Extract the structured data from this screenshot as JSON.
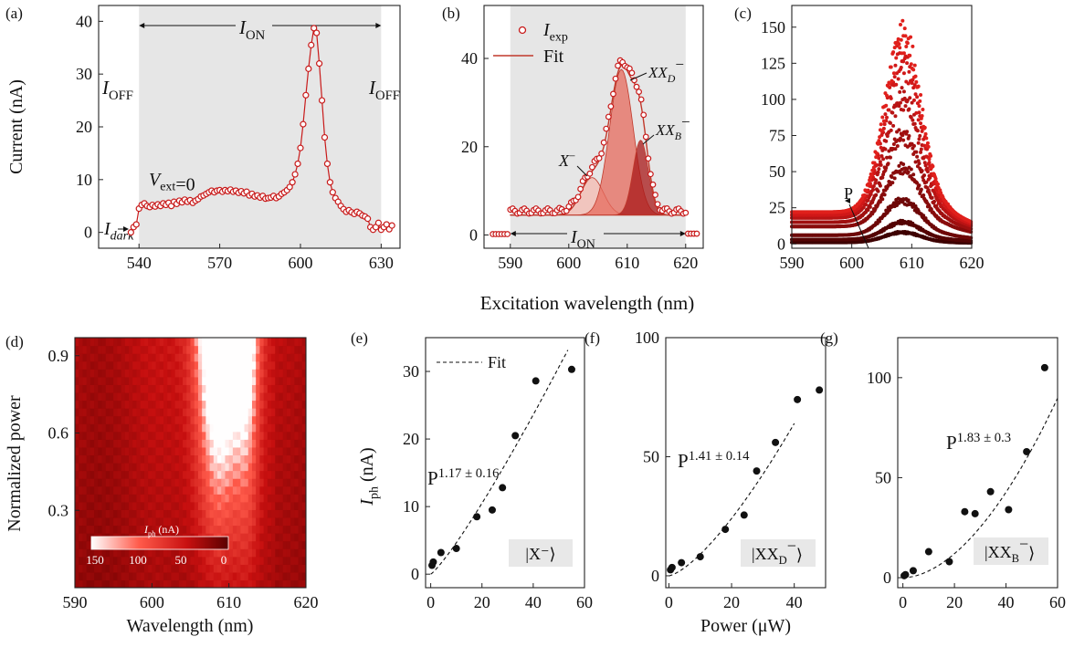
{
  "colors": {
    "red": "#c81a1a",
    "dark_red": "#6e0000",
    "shade": "#e6e6e6",
    "fit": "#c0392b",
    "black": "#111111",
    "label_box": "#e8e8e8"
  },
  "shared_xlabel_top": "Excitation wavelength (nm)",
  "chart_data": [
    {
      "panel": "(a)",
      "type": "line",
      "ylabel": "Current (nA)",
      "xlim": [
        525,
        637
      ],
      "ylim": [
        -3,
        43
      ],
      "xticks": [
        540,
        570,
        600,
        630
      ],
      "yticks": [
        0,
        10,
        20,
        30,
        40
      ],
      "shaded_x": [
        540,
        630
      ],
      "annotations": {
        "i_on": "I",
        "i_on_sub": "ON",
        "i_off": "I",
        "i_off_sub": "OFF",
        "i_dark": "I",
        "i_dark_sub": "dark",
        "v_ext": "V",
        "v_ext_sub": "ext",
        "v_ext_val": "=0"
      },
      "series": [
        {
          "x": [
            537,
            538,
            539,
            540,
            541,
            542,
            543,
            544,
            545,
            546,
            547,
            548,
            549,
            550,
            551,
            552,
            553,
            554,
            555,
            556,
            557,
            558,
            559,
            560,
            561,
            562,
            563,
            564,
            565,
            566,
            567,
            568,
            569,
            570,
            571,
            572,
            573,
            574,
            575,
            576,
            577,
            578,
            579,
            580,
            581,
            582,
            583,
            584,
            585,
            586,
            587,
            588,
            589,
            590,
            591,
            592,
            593,
            594,
            595,
            596,
            597,
            598,
            599,
            600,
            601,
            602,
            603,
            604,
            605,
            606,
            607,
            608,
            609,
            610,
            611,
            612,
            613,
            614,
            615,
            616,
            617,
            618,
            619,
            620,
            621,
            622,
            623,
            624,
            625,
            626,
            627,
            628,
            629,
            630,
            631,
            632,
            633,
            634
          ],
          "y": [
            0,
            1,
            1.5,
            4.5,
            5.2,
            5.5,
            5,
            4.8,
            5.2,
            4.9,
            5.3,
            5,
            5.5,
            5.2,
            5.6,
            5,
            5.8,
            5.4,
            6,
            5.7,
            6.2,
            5.8,
            6.1,
            5.6,
            6,
            6.3,
            6.8,
            7,
            7.3,
            7.6,
            7.9,
            7.6,
            7.9,
            8,
            7.7,
            8,
            7.8,
            8.1,
            7.7,
            7.9,
            7.5,
            7.8,
            7.4,
            7.7,
            7,
            7.3,
            6.8,
            7,
            6.6,
            6.9,
            6.4,
            6.5,
            6.6,
            6.9,
            6.5,
            6.8,
            7.3,
            7.6,
            8,
            8.6,
            9.5,
            11,
            13,
            16,
            20.5,
            26,
            31,
            35.5,
            38.7,
            37.8,
            32,
            25,
            18,
            13,
            9.5,
            7.6,
            6.5,
            5.8,
            5,
            4.4,
            3.9,
            4.2,
            3.8,
            3.5,
            3.9,
            3.6,
            3.2,
            3,
            2.6,
            1,
            0.5,
            1,
            1.8,
            0.5,
            1,
            1.5,
            0.6,
            1.3
          ]
        }
      ]
    },
    {
      "panel": "(b)",
      "type": "scatter+area",
      "xlim": [
        585.5,
        623
      ],
      "ylim": [
        -3,
        52
      ],
      "xticks": [
        590,
        600,
        610,
        620
      ],
      "yticks": [
        0,
        20,
        40
      ],
      "shaded_x": [
        590,
        620
      ],
      "legend": [
        {
          "name": "I",
          "sub": "exp"
        },
        {
          "name": "Fit"
        }
      ],
      "components": [
        {
          "label": "X",
          "center": 604,
          "width": 1.9,
          "height": 8.5
        },
        {
          "label": "XX_D",
          "center": 609,
          "width": 2.0,
          "height": 33
        },
        {
          "label": "XX_B",
          "center": 612.3,
          "width": 1.3,
          "height": 17
        }
      ],
      "baseline": 4.5,
      "annotations": {
        "i_on": "I",
        "i_on_sub": "ON",
        "x_minus": "X",
        "xx": "XX",
        "d": "D",
        "b": "B",
        "minus": "−"
      }
    },
    {
      "panel": "(c)",
      "type": "scatter",
      "xlim": [
        590,
        620
      ],
      "ylim": [
        -3,
        165
      ],
      "xticks": [
        590,
        600,
        610,
        620
      ],
      "yticks": [
        0,
        25,
        50,
        75,
        100,
        125,
        150
      ],
      "annotation": "P",
      "series": [
        {
          "peak": 143,
          "base": 22,
          "color": "#e0201c"
        },
        {
          "peak": 125,
          "base": 20,
          "color": "#d01818"
        },
        {
          "peak": 100,
          "base": 18,
          "color": "#b81414"
        },
        {
          "peak": 75,
          "base": 15,
          "color": "#a01010"
        },
        {
          "peak": 52,
          "base": 12,
          "color": "#880c0c"
        },
        {
          "peak": 30,
          "base": 6,
          "color": "#6e0808"
        },
        {
          "peak": 15,
          "base": 3,
          "color": "#540404"
        },
        {
          "peak": 8,
          "base": 1,
          "color": "#3e0000"
        }
      ]
    },
    {
      "panel": "(d)",
      "type": "heatmap",
      "xlabel": "Wavelength (nm)",
      "ylabel": "Normalized power",
      "xlim": [
        590,
        620
      ],
      "ylim": [
        0,
        0.97
      ],
      "xticks": [
        590,
        600,
        610,
        620
      ],
      "yticks": [
        0.3,
        0.6,
        0.9
      ],
      "colorbar": {
        "label": "I",
        "label_sub": "ph",
        "label_unit": " (nA)",
        "ticks": [
          150,
          100,
          50,
          0
        ]
      }
    },
    {
      "panel": "(e)",
      "type": "scatter",
      "ylabel": "I",
      "ylabel_sub": "ph",
      "ylabel_unit": " (nA)",
      "xlim": [
        -2,
        60
      ],
      "ylim": [
        -2,
        35
      ],
      "xticks": [
        0,
        20,
        40,
        60
      ],
      "yticks": [
        0,
        10,
        20,
        30
      ],
      "legend": "Fit",
      "power_label": "P",
      "exponent": "1.17 ± 0.16",
      "state_label": "|X⁻⟩",
      "fit": {
        "a": 0.3151,
        "b": 1.17
      },
      "points": {
        "x": [
          0.5,
          1,
          4,
          10,
          18,
          24,
          28,
          33,
          41,
          55
        ],
        "y": [
          1.3,
          1.8,
          3.2,
          3.8,
          8.5,
          9.5,
          12.8,
          20.5,
          28.6,
          30.3
        ]
      }
    },
    {
      "panel": "(f)",
      "type": "scatter",
      "xlabel": "Power (μW)",
      "xlim": [
        -1,
        50
      ],
      "ylim": [
        -5,
        100
      ],
      "xticks": [
        0,
        20,
        40
      ],
      "yticks": [
        0,
        50,
        100
      ],
      "power_label": "P",
      "exponent": "1.41 ± 0.14",
      "state_label": "|XX",
      "state_sub": "D",
      "state_sup": "−",
      "state_end": "⟩",
      "fit": {
        "a": 0.3524,
        "b": 1.41
      },
      "points": {
        "x": [
          0.5,
          1,
          4,
          10,
          18,
          24,
          28,
          34,
          41,
          48
        ],
        "y": [
          2.5,
          3.5,
          5.5,
          8,
          19.5,
          25.5,
          44,
          56,
          74,
          78
        ]
      }
    },
    {
      "panel": "(g)",
      "type": "scatter",
      "xlim": [
        -2,
        60
      ],
      "ylim": [
        -5,
        120
      ],
      "xticks": [
        0,
        20,
        40,
        60
      ],
      "yticks": [
        0,
        50,
        100
      ],
      "power_label": "P",
      "exponent": "1.83 ± 0.3",
      "state_label": "|XX",
      "state_sub": "B",
      "state_sup": "−",
      "state_end": "⟩",
      "fit": {
        "a": 0.05,
        "b": 1.83
      },
      "points": {
        "x": [
          0.5,
          1,
          4,
          10,
          18,
          24,
          28,
          34,
          41,
          48,
          55
        ],
        "y": [
          1,
          1.5,
          3.5,
          13,
          8,
          33,
          32,
          43,
          34,
          63,
          105
        ]
      }
    }
  ]
}
